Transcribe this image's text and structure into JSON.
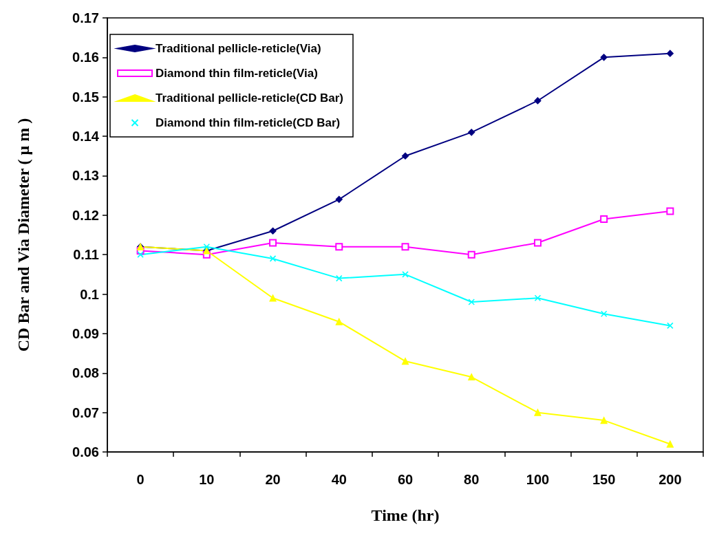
{
  "chart_data": {
    "type": "line",
    "xlabel": "Time (hr)",
    "ylabel": "CD Bar and Via Diameter ( μ m )",
    "categories": [
      "0",
      "10",
      "20",
      "40",
      "60",
      "80",
      "100",
      "150",
      "200"
    ],
    "ylim": [
      0.06,
      0.17
    ],
    "yticks": [
      0.06,
      0.07,
      0.08,
      0.09,
      0.1,
      0.11,
      0.12,
      0.13,
      0.14,
      0.15,
      0.16,
      0.17
    ],
    "grid": false,
    "legend": "top left",
    "line_style": "solid",
    "series": [
      {
        "name": "Traditional pellicle-reticle(Via)",
        "color": "#000080",
        "marker": "diamond",
        "values": [
          0.112,
          0.111,
          0.116,
          0.124,
          0.135,
          0.141,
          0.149,
          0.16,
          0.161
        ]
      },
      {
        "name": "Diamond thin film-reticle(Via)",
        "color": "#ff00ff",
        "marker": "square",
        "values": [
          0.111,
          0.11,
          0.113,
          0.112,
          0.112,
          0.11,
          0.113,
          0.119,
          0.121
        ]
      },
      {
        "name": "Traditional pellicle-reticle(CD Bar)",
        "color": "#ffff00",
        "marker": "triangle",
        "values": [
          0.112,
          0.111,
          0.099,
          0.093,
          0.083,
          0.079,
          0.07,
          0.068,
          0.062
        ]
      },
      {
        "name": "Diamond thin film-reticle(CD Bar)",
        "color": "#00ffff",
        "marker": "cross",
        "values": [
          0.11,
          0.112,
          0.109,
          0.104,
          0.105,
          0.098,
          0.099,
          0.095,
          0.092
        ]
      }
    ]
  }
}
